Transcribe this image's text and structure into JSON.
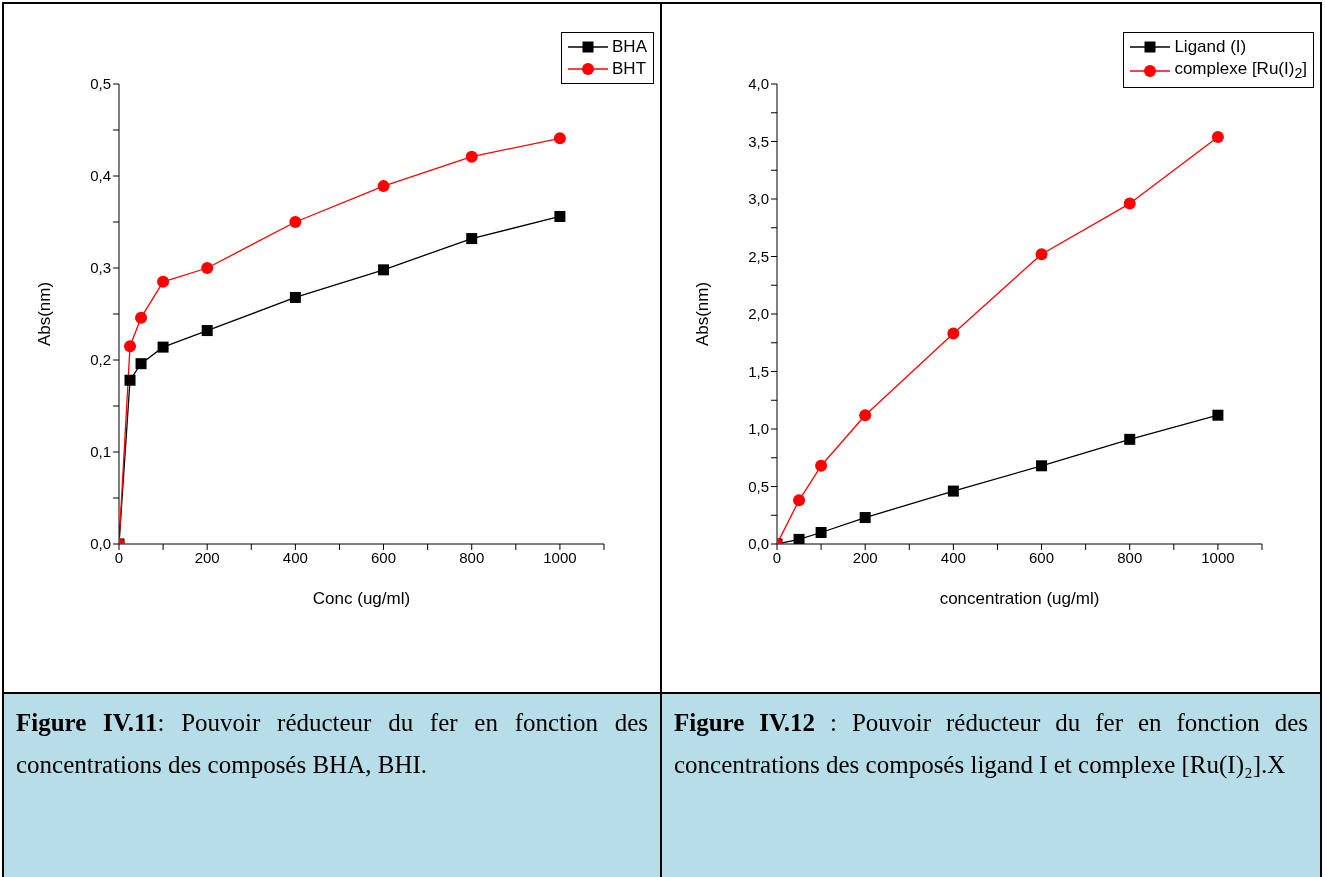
{
  "chart_data": [
    {
      "type": "line",
      "xlabel": "Conc (ug/ml)",
      "ylabel": "Abs(nm)",
      "x": [
        0,
        25,
        50,
        100,
        200,
        400,
        600,
        800,
        1000
      ],
      "xlim": [
        0,
        1100
      ],
      "xticks": [
        0,
        {
          "value": 100,
          "label": null
        },
        200,
        {
          "value": 300,
          "label": null
        },
        400,
        {
          "value": 500,
          "label": null
        },
        600,
        {
          "value": 700,
          "label": null
        },
        800,
        {
          "value": 900,
          "label": null
        },
        1000,
        {
          "value": 1100,
          "label": null
        }
      ],
      "ylim": [
        0,
        0.5
      ],
      "yticks": [
        {
          "value": 0,
          "label": "0,0"
        },
        {
          "value": 0.05,
          "label": null
        },
        {
          "value": 0.1,
          "label": "0,1"
        },
        {
          "value": 0.15,
          "label": null
        },
        {
          "value": 0.2,
          "label": "0,2"
        },
        {
          "value": 0.25,
          "label": null
        },
        {
          "value": 0.3,
          "label": "0,3"
        },
        {
          "value": 0.35,
          "label": null
        },
        {
          "value": 0.4,
          "label": "0,4"
        },
        {
          "value": 0.45,
          "label": null
        },
        {
          "value": 0.5,
          "label": "0,5"
        }
      ],
      "legend": "top right",
      "series": [
        {
          "name": "BHA",
          "color": "#000000",
          "marker": "square",
          "values": [
            0,
            0.178,
            0.196,
            0.214,
            0.232,
            0.268,
            0.298,
            0.332,
            0.356
          ]
        },
        {
          "name": "BHT",
          "color": "#ff0000",
          "marker": "circle",
          "values": [
            0,
            0.215,
            0.246,
            0.285,
            0.3,
            0.35,
            0.389,
            0.421,
            0.441
          ]
        }
      ],
      "annotations": [
        "Figure IV.11: Pouvoir réducteur du fer en fonction des concentrations des composés BHA, BHI."
      ]
    },
    {
      "type": "line",
      "xlabel": "concentration (ug/ml)",
      "ylabel": "Abs(nm)",
      "x": [
        0,
        50,
        100,
        200,
        400,
        600,
        800,
        1000
      ],
      "xlim": [
        0,
        1100
      ],
      "xticks": [
        0,
        {
          "value": 100,
          "label": null
        },
        200,
        {
          "value": 300,
          "label": null
        },
        400,
        {
          "value": 500,
          "label": null
        },
        600,
        {
          "value": 700,
          "label": null
        },
        800,
        {
          "value": 900,
          "label": null
        },
        1000,
        {
          "value": 1100,
          "label": null
        }
      ],
      "ylim": [
        0,
        4
      ],
      "yticks": [
        {
          "value": 0,
          "label": "0,0"
        },
        {
          "value": 0.25,
          "label": null
        },
        {
          "value": 0.5,
          "label": "0,5"
        },
        {
          "value": 0.75,
          "label": null
        },
        {
          "value": 1,
          "label": "1,0"
        },
        {
          "value": 1.25,
          "label": null
        },
        {
          "value": 1.5,
          "label": "1,5"
        },
        {
          "value": 1.75,
          "label": null
        },
        {
          "value": 2,
          "label": "2,0"
        },
        {
          "value": 2.25,
          "label": null
        },
        {
          "value": 2.5,
          "label": "2,5"
        },
        {
          "value": 2.75,
          "label": null
        },
        {
          "value": 3,
          "label": "3,0"
        },
        {
          "value": 3.25,
          "label": null
        },
        {
          "value": 3.5,
          "label": "3,5"
        },
        {
          "value": 3.75,
          "label": null
        },
        {
          "value": 4,
          "label": "4,0"
        }
      ],
      "legend": "top right",
      "series": [
        {
          "name": "Ligand (I)",
          "color": "#000000",
          "marker": "square",
          "values": [
            0,
            0.04,
            0.1,
            0.23,
            0.46,
            0.68,
            0.91,
            1.12
          ]
        },
        {
          "name": "complexe [Ru(I)$_{2}$]",
          "color": "#ff0000",
          "marker": "circle",
          "values": [
            0,
            0.38,
            0.68,
            1.12,
            1.83,
            2.52,
            2.96,
            3.54
          ]
        }
      ],
      "annotations": [
        "Figure IV.12 : Pouvoir réducteur du fer en fonction des concentrations des composés ligand I et complexe [Ru(I)₂].X"
      ]
    }
  ]
}
